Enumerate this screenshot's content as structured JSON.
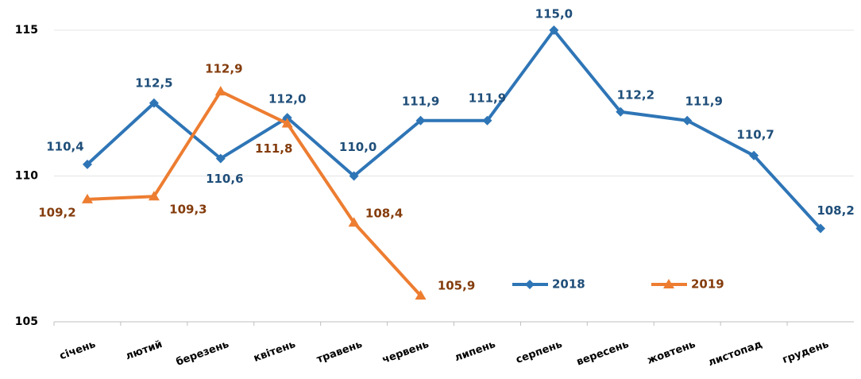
{
  "chart_data": {
    "type": "line",
    "categories": [
      "січень",
      "лютий",
      "березень",
      "квітень",
      "травень",
      "червень",
      "липень",
      "серпень",
      "вересень",
      "жовтень",
      "листопад",
      "грудень"
    ],
    "series": [
      {
        "name": "2018",
        "color": "#2e75b6",
        "label_color": "#1f4e79",
        "marker": "diamond",
        "values": [
          110.4,
          112.5,
          110.6,
          112.0,
          110.0,
          111.9,
          111.9,
          115.0,
          112.2,
          111.9,
          110.7,
          108.2
        ],
        "value_labels": [
          "110,4",
          "112,5",
          "110,6",
          "112,0",
          "110,0",
          "111,9",
          "111,9",
          "115,0",
          "112,2",
          "111,9",
          "110,7",
          "108,2"
        ]
      },
      {
        "name": "2019",
        "color": "#ed7d31",
        "label_color": "#843c0c",
        "marker": "triangle",
        "values": [
          109.2,
          109.3,
          112.9,
          111.8,
          108.4,
          105.9,
          null,
          null,
          null,
          null,
          null,
          null
        ],
        "value_labels": [
          "109,2",
          "109,3",
          "112,9",
          "111,8",
          "108,4",
          "105,9",
          null,
          null,
          null,
          null,
          null,
          null
        ]
      }
    ],
    "ylim": [
      105,
      115
    ],
    "yticks": [
      105,
      110,
      115
    ],
    "grid": true
  }
}
